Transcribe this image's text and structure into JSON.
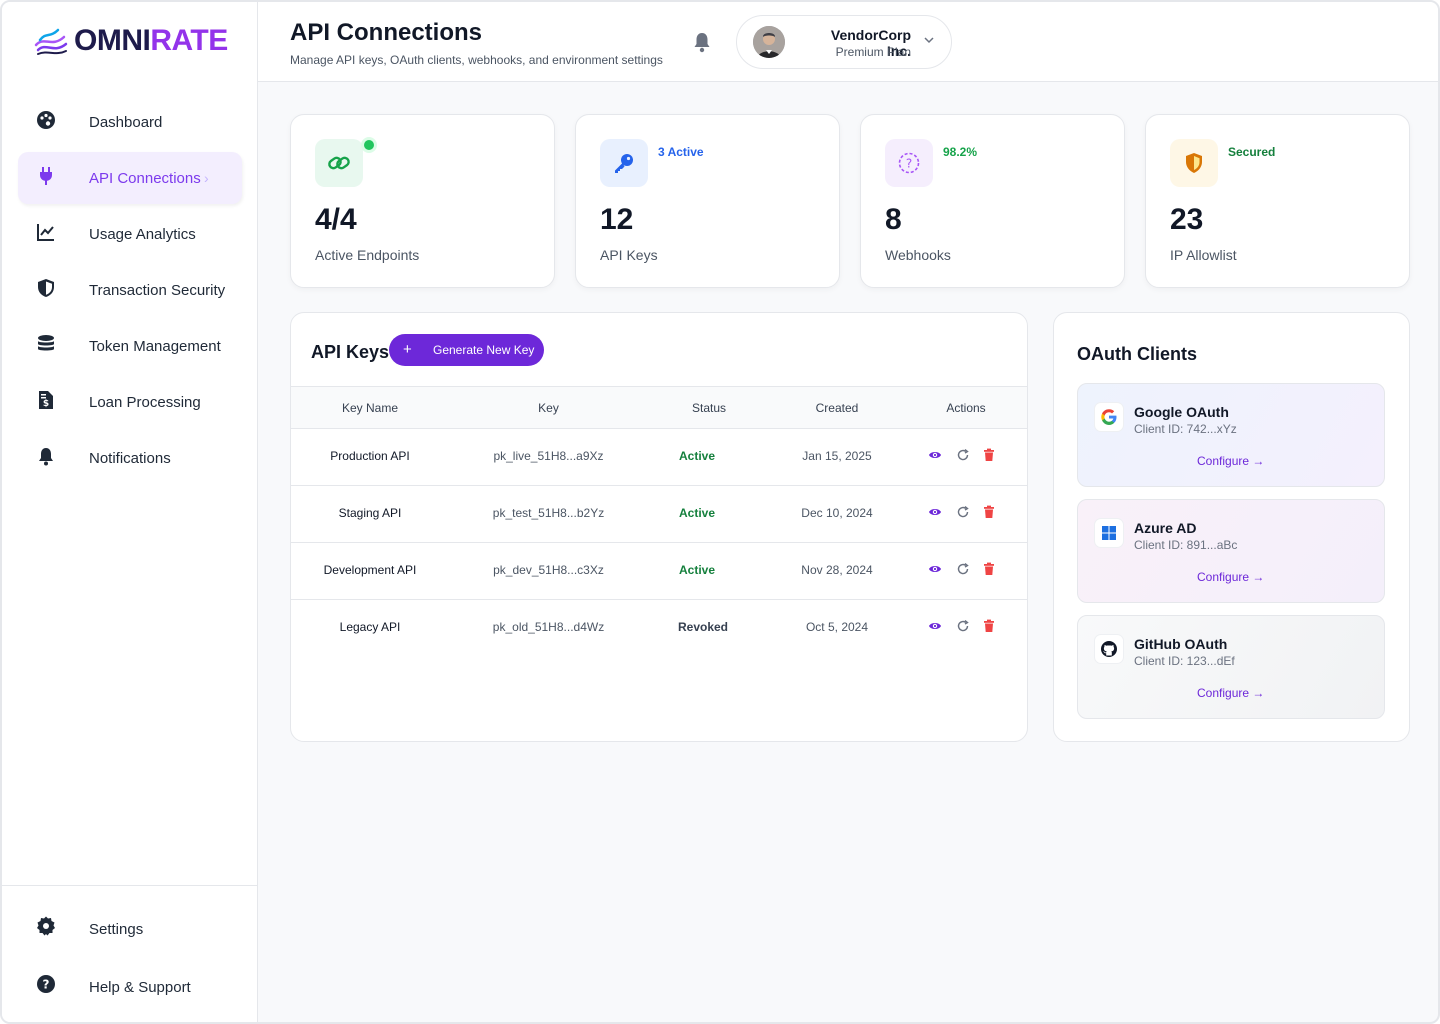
{
  "brand": {
    "part1": "OMNI",
    "part2": "RATE"
  },
  "sidebar": {
    "items": [
      {
        "label": "Dashboard",
        "icon": "palette-icon"
      },
      {
        "label": "API Connections",
        "icon": "plug-icon",
        "active": true
      },
      {
        "label": "Usage Analytics",
        "icon": "chart-line-icon"
      },
      {
        "label": "Transaction Security",
        "icon": "shield-icon"
      },
      {
        "label": "Token Management",
        "icon": "coins-icon"
      },
      {
        "label": "Loan Processing",
        "icon": "file-invoice-dollar-icon"
      },
      {
        "label": "Notifications",
        "icon": "bell-icon"
      }
    ],
    "bottom": [
      {
        "label": "Settings",
        "icon": "gear-icon"
      },
      {
        "label": "Help & Support",
        "icon": "question-circle-icon"
      }
    ]
  },
  "header": {
    "title": "API Connections",
    "subtitle": "Manage API keys, OAuth clients, webhooks, and environment settings",
    "user": {
      "name": "VendorCorp Inc.",
      "plan": "Premium Plan"
    }
  },
  "stats": [
    {
      "value": "4/4",
      "caption": "Active Endpoints",
      "badge": "",
      "icon": "link-icon",
      "badge_color": "#16a34a"
    },
    {
      "value": "12",
      "caption": "API Keys",
      "badge": "3 Active",
      "icon": "key-icon",
      "badge_color": "#2563eb"
    },
    {
      "value": "8",
      "caption": "Webhooks",
      "badge": "98.2%",
      "icon": "question-circle-icon",
      "badge_color": "#16a34a"
    },
    {
      "value": "23",
      "caption": "IP Allowlist",
      "badge": "Secured",
      "icon": "shield-icon",
      "badge_color": "#15803d"
    }
  ],
  "api_keys": {
    "title": "API Keys",
    "generate_label": "Generate New Key",
    "columns": [
      "Key Name",
      "Key",
      "Status",
      "Created",
      "Actions"
    ],
    "rows": [
      {
        "name": "Production API",
        "key": "pk_live_51H8...a9Xz",
        "status": "Active",
        "created": "Jan 15, 2025"
      },
      {
        "name": "Staging API",
        "key": "pk_test_51H8...b2Yz",
        "status": "Active",
        "created": "Dec 10, 2024"
      },
      {
        "name": "Development API",
        "key": "pk_dev_51H8...c3Xz",
        "status": "Active",
        "created": "Nov 28, 2024"
      },
      {
        "name": "Legacy API",
        "key": "pk_old_51H8...d4Wz",
        "status": "Revoked",
        "created": "Oct 5, 2024"
      }
    ]
  },
  "oauth": {
    "title": "OAuth Clients",
    "configure_label": "Configure →",
    "clients": [
      {
        "name": "Google OAuth",
        "client_id": "Client ID: 742...xYz",
        "icon": "google-icon"
      },
      {
        "name": "Azure AD",
        "client_id": "Client ID: 891...aBc",
        "icon": "windows-icon"
      },
      {
        "name": "GitHub OAuth",
        "client_id": "Client ID: 123...dEf",
        "icon": "github-icon"
      }
    ]
  },
  "colors": {
    "accent": "#7c3aed",
    "active_status": "#15803d",
    "danger": "#ef4444"
  }
}
